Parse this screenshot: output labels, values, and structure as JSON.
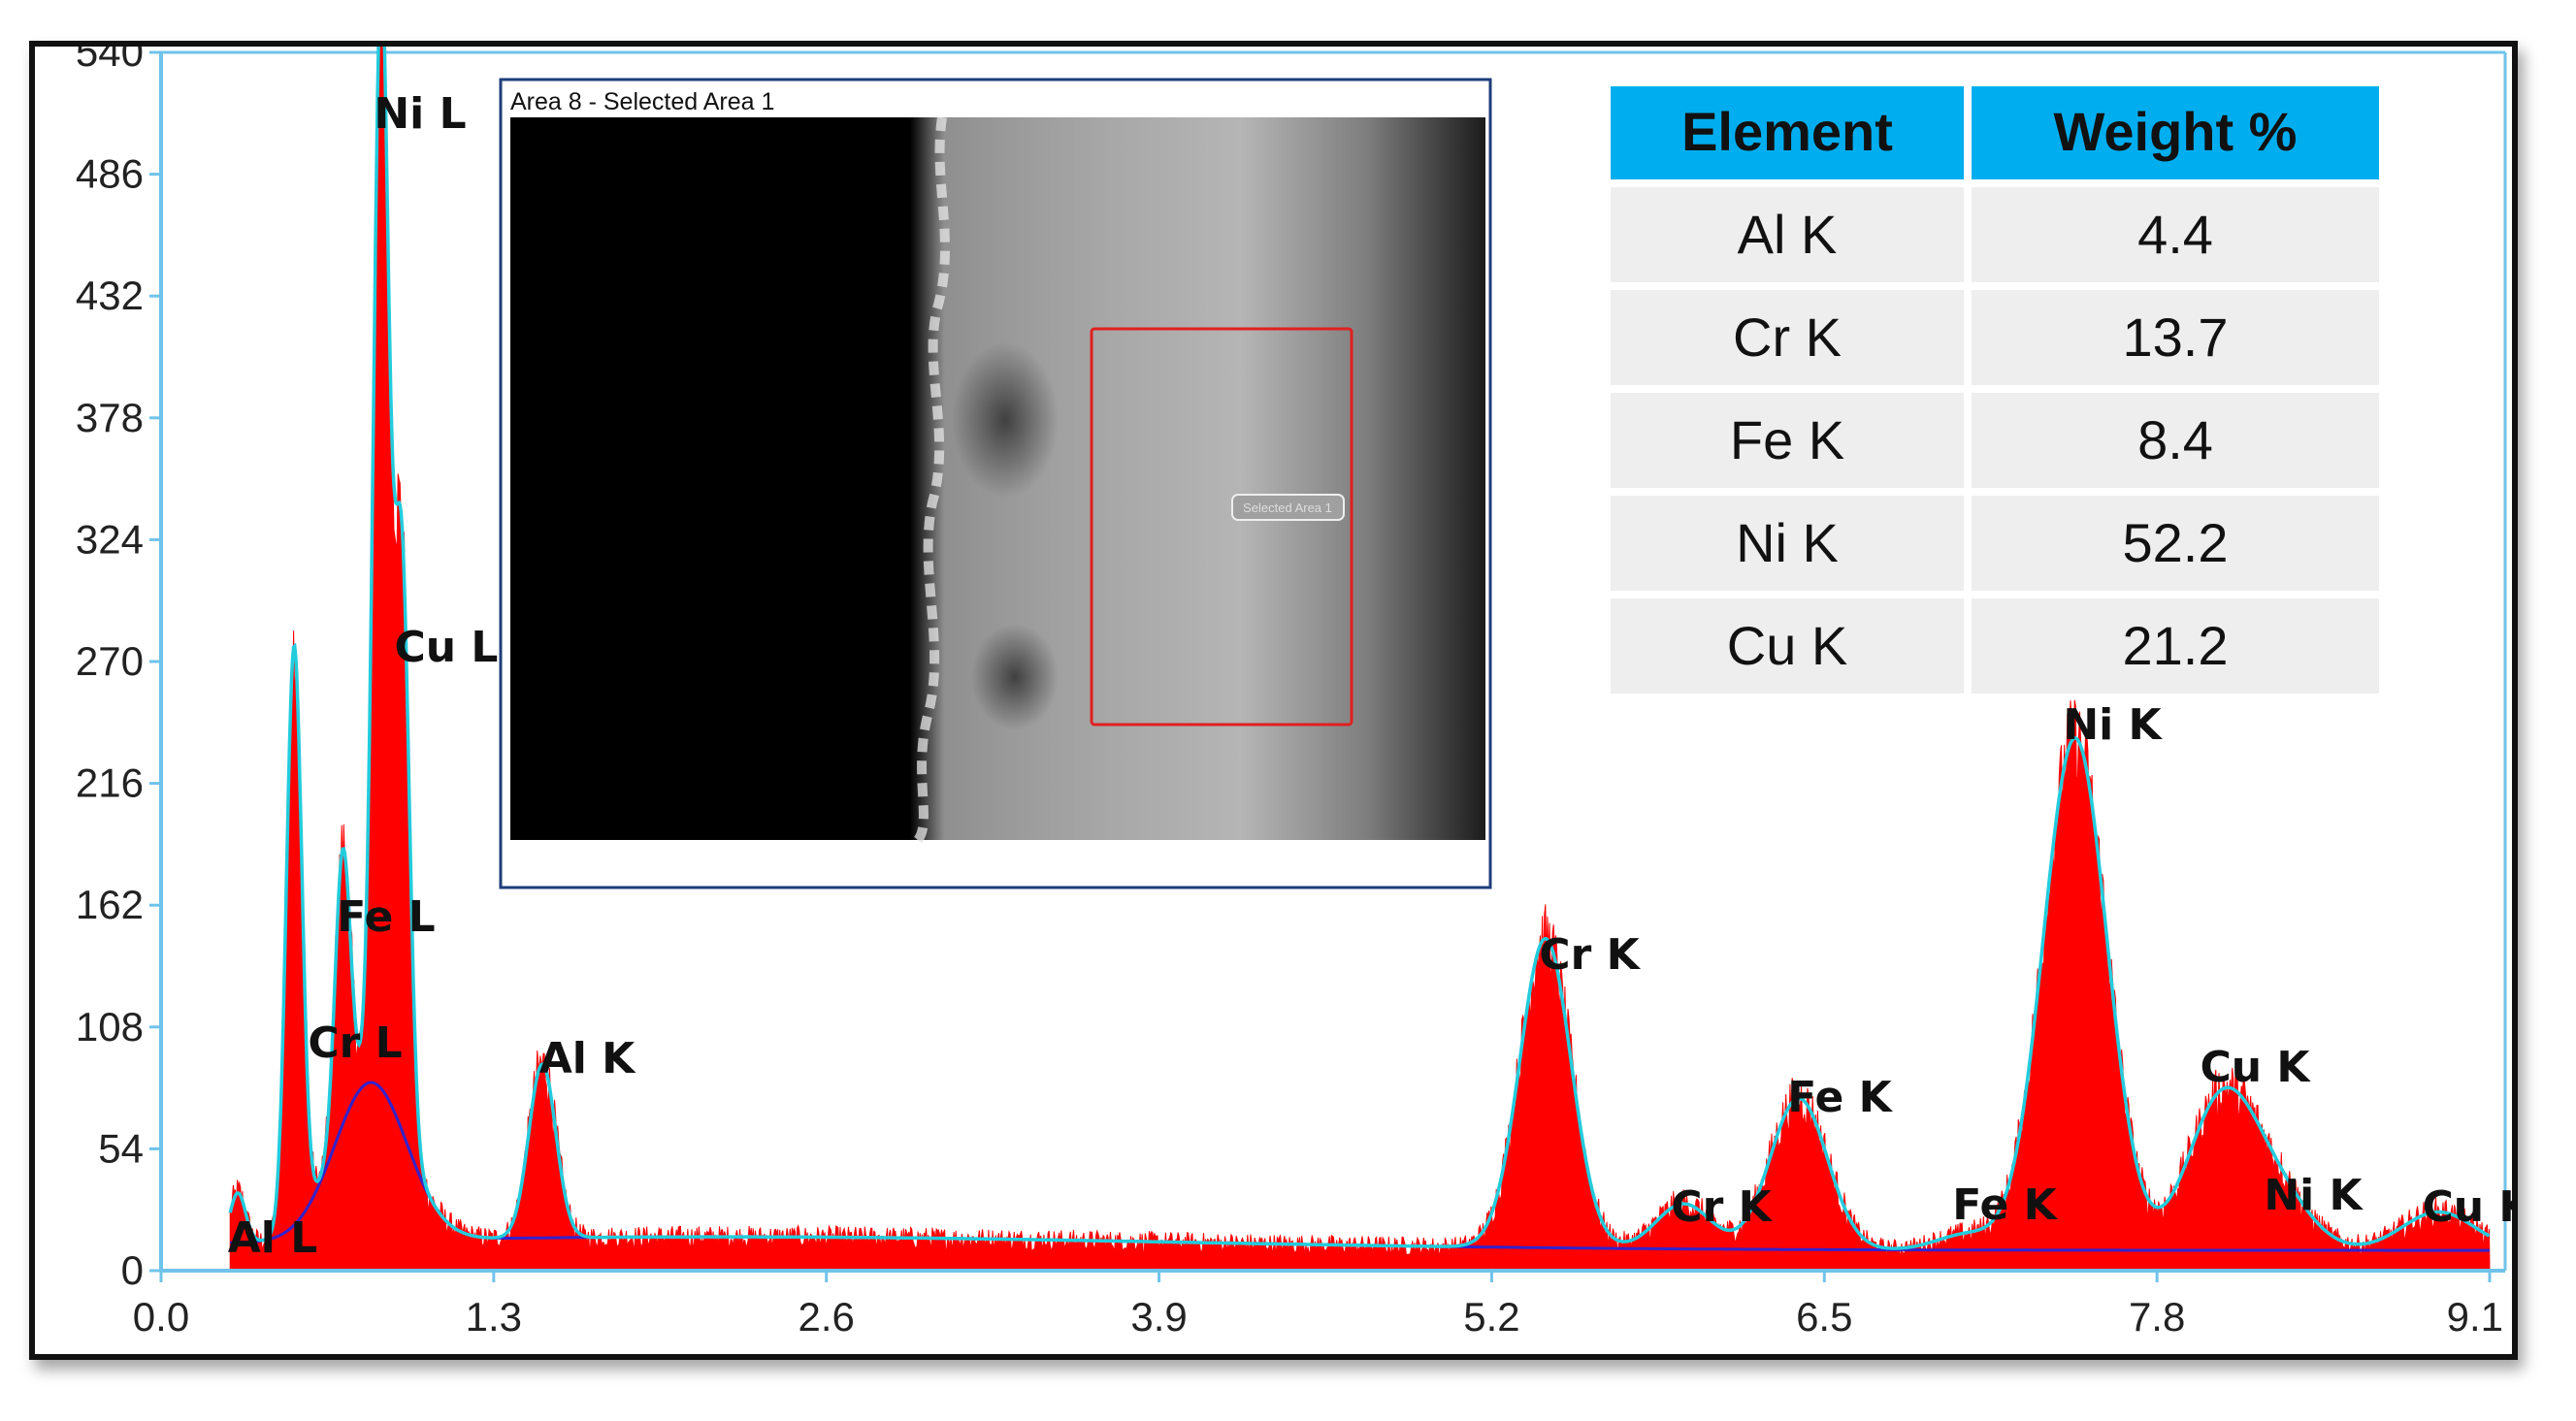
{
  "chart_data": {
    "type": "area",
    "xlim": [
      0.0,
      9.1
    ],
    "ylim": [
      0,
      540
    ],
    "x_ticks": [
      "0.0",
      "1.3",
      "2.6",
      "3.9",
      "5.2",
      "6.5",
      "7.8",
      "9.1"
    ],
    "y_ticks": [
      "0",
      "54",
      "108",
      "162",
      "216",
      "270",
      "324",
      "378",
      "432",
      "486",
      "540"
    ],
    "colors": {
      "spectrum": "#ff0000",
      "fit": "#22ccdd",
      "background": "#3322cc",
      "axis": "#6fc3ea"
    },
    "peaks": [
      {
        "label": "Al L",
        "x": 0.3,
        "y": 30
      },
      {
        "label": "Cr L",
        "x": 0.52,
        "y": 265
      },
      {
        "label": "Fe L",
        "x": 0.71,
        "y": 130
      },
      {
        "label": "Ni L",
        "x": 0.86,
        "y": 495
      },
      {
        "label": "Cu L",
        "x": 0.94,
        "y": 265
      },
      {
        "label": "Al K",
        "x": 1.49,
        "y": 85
      },
      {
        "label": "Cr K",
        "x": 5.41,
        "y": 145
      },
      {
        "label": "Cr K",
        "x": 5.95,
        "y": 28
      },
      {
        "label": "Fe K",
        "x": 6.4,
        "y": 75
      },
      {
        "label": "Fe K",
        "x": 7.06,
        "y": 15
      },
      {
        "label": "Ni K",
        "x": 7.48,
        "y": 235
      },
      {
        "label": "Cu K",
        "x": 8.05,
        "y": 72
      },
      {
        "label": "Ni K",
        "x": 8.26,
        "y": 32
      },
      {
        "label": "Cu K",
        "x": 8.9,
        "y": 25
      }
    ],
    "table": {
      "headers": [
        "Element",
        "Weight %"
      ],
      "rows": [
        [
          "Al K",
          "4.4"
        ],
        [
          "Cr K",
          "13.7"
        ],
        [
          "Fe K",
          "8.4"
        ],
        [
          "Ni K",
          "52.2"
        ],
        [
          "Cu K",
          "21.2"
        ]
      ]
    }
  },
  "inset": {
    "title": "Area 8 - Selected Area 1",
    "selection_label": "Selected Area 1"
  }
}
